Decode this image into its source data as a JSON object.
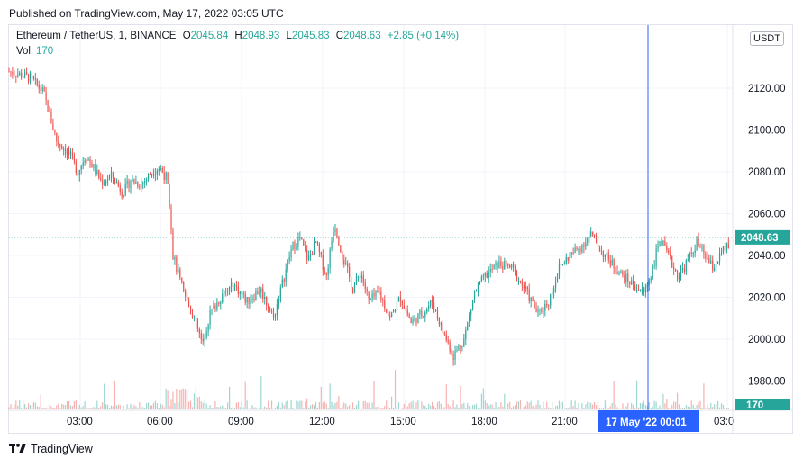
{
  "header": {
    "published": "Published on TradingView.com, May 17, 2022 03:05 UTC"
  },
  "legend": {
    "symbol": "Ethereum / TetherUS, 1, BINANCE",
    "o_label": "O",
    "o": "2045.84",
    "h_label": "H",
    "h": "2048.93",
    "l_label": "L",
    "l": "2045.83",
    "c_label": "C",
    "c": "2048.63",
    "change": "+2.85 (+0.14%)",
    "vol_label": "Vol",
    "vol": "170"
  },
  "currency_badge": "USDT",
  "footer": {
    "brand": "TradingView"
  },
  "colors": {
    "up": "#26a69a",
    "down": "#ef5350",
    "crosshair": "#2962ff",
    "grid": "#f0f3fa"
  },
  "chart_data": {
    "type": "candlestick",
    "y_ticks": [
      "1980.00",
      "2000.00",
      "2020.00",
      "2040.00",
      "2060.00",
      "2080.00",
      "2100.00",
      "2120.00"
    ],
    "x_ticks": [
      "03:00",
      "06:00",
      "09:00",
      "12:00",
      "15:00",
      "18:00",
      "21:00",
      "03:0"
    ],
    "ylim": [
      1966,
      2136
    ],
    "last_price": "2048.63",
    "last_volume": "170",
    "crosshair_label": "17 May '22   00:01",
    "price_path": [
      [
        0.0,
        2128
      ],
      [
        0.8,
        2125
      ],
      [
        1.3,
        2118
      ],
      [
        1.8,
        2095
      ],
      [
        2.3,
        2088
      ],
      [
        2.6,
        2080
      ],
      [
        2.9,
        2088
      ],
      [
        3.2,
        2082
      ],
      [
        3.5,
        2075
      ],
      [
        3.9,
        2078
      ],
      [
        4.3,
        2070
      ],
      [
        4.6,
        2076
      ],
      [
        5.0,
        2074
      ],
      [
        5.4,
        2080
      ],
      [
        5.7,
        2082
      ],
      [
        6.0,
        2076
      ],
      [
        6.1,
        2060
      ],
      [
        6.2,
        2040
      ],
      [
        6.6,
        2022
      ],
      [
        7.0,
        2010
      ],
      [
        7.3,
        1998
      ],
      [
        7.6,
        2012
      ],
      [
        8.0,
        2020
      ],
      [
        8.5,
        2026
      ],
      [
        9.0,
        2018
      ],
      [
        9.5,
        2024
      ],
      [
        10.0,
        2010
      ],
      [
        10.4,
        2030
      ],
      [
        10.7,
        2044
      ],
      [
        11.0,
        2048
      ],
      [
        11.3,
        2038
      ],
      [
        11.6,
        2046
      ],
      [
        12.0,
        2030
      ],
      [
        12.3,
        2056
      ],
      [
        12.6,
        2040
      ],
      [
        13.0,
        2024
      ],
      [
        13.3,
        2032
      ],
      [
        13.6,
        2018
      ],
      [
        14.0,
        2022
      ],
      [
        14.4,
        2010
      ],
      [
        14.8,
        2020
      ],
      [
        15.2,
        2008
      ],
      [
        15.6,
        2012
      ],
      [
        16.0,
        2018
      ],
      [
        16.4,
        2004
      ],
      [
        16.8,
        1992
      ],
      [
        17.2,
        2000
      ],
      [
        17.6,
        2022
      ],
      [
        18.0,
        2030
      ],
      [
        18.5,
        2036
      ],
      [
        19.0,
        2034
      ],
      [
        19.5,
        2024
      ],
      [
        20.0,
        2012
      ],
      [
        20.4,
        2018
      ],
      [
        20.8,
        2034
      ],
      [
        21.2,
        2040
      ],
      [
        21.6,
        2044
      ],
      [
        22.0,
        2050
      ],
      [
        22.4,
        2042
      ],
      [
        22.8,
        2036
      ],
      [
        23.2,
        2030
      ],
      [
        23.6,
        2026
      ],
      [
        24.0,
        2022
      ],
      [
        24.3,
        2032
      ],
      [
        24.6,
        2048
      ],
      [
        24.9,
        2040
      ],
      [
        25.3,
        2030
      ],
      [
        25.6,
        2036
      ],
      [
        26.0,
        2046
      ],
      [
        26.3,
        2040
      ],
      [
        26.6,
        2034
      ],
      [
        27.0,
        2042
      ],
      [
        27.3,
        2046
      ],
      [
        27.5,
        2048.63
      ]
    ]
  }
}
